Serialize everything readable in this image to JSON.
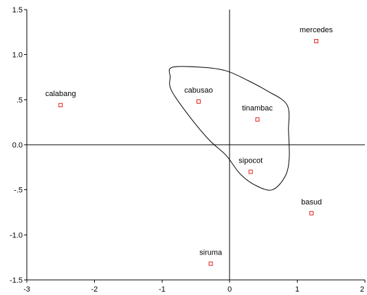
{
  "chart_data": {
    "type": "scatter",
    "title": "",
    "xlabel": "",
    "ylabel": "",
    "xlim": [
      -3,
      2
    ],
    "ylim": [
      -1.5,
      1.5
    ],
    "x_ticks": [
      {
        "value": -3,
        "label": "-3"
      },
      {
        "value": -2,
        "label": "-2"
      },
      {
        "value": -1,
        "label": "-1"
      },
      {
        "value": 0,
        "label": "0"
      },
      {
        "value": 1,
        "label": "1"
      },
      {
        "value": 2,
        "label": "2"
      }
    ],
    "y_ticks": [
      {
        "value": 1.5,
        "label": "1.5"
      },
      {
        "value": 1.0,
        "label": "1.0"
      },
      {
        "value": 0.5,
        "label": ".5"
      },
      {
        "value": 0.0,
        "label": "0.0"
      },
      {
        "value": -0.5,
        "label": "-.5"
      },
      {
        "value": -1.0,
        "label": "-1.0"
      },
      {
        "value": -1.5,
        "label": "-1.5"
      }
    ],
    "reference_lines": {
      "x": 0,
      "y": 0
    },
    "marker_color": "#e0201b",
    "points": [
      {
        "label": "mercedes",
        "x": 1.28,
        "y": 1.15
      },
      {
        "label": "calabang",
        "x": -2.5,
        "y": 0.44
      },
      {
        "label": "cabusao",
        "x": -0.46,
        "y": 0.48
      },
      {
        "label": "tinambac",
        "x": 0.41,
        "y": 0.28
      },
      {
        "label": "sipocot",
        "x": 0.31,
        "y": -0.3
      },
      {
        "label": "basud",
        "x": 1.21,
        "y": -0.76
      },
      {
        "label": "siruma",
        "x": -0.28,
        "y": -1.32
      }
    ],
    "cluster_outline": [
      [
        -0.85,
        0.86
      ],
      [
        -0.4,
        0.86
      ],
      [
        -0.05,
        0.82
      ],
      [
        0.25,
        0.72
      ],
      [
        0.55,
        0.6
      ],
      [
        0.85,
        0.44
      ],
      [
        0.87,
        0.15
      ],
      [
        0.88,
        -0.15
      ],
      [
        0.82,
        -0.35
      ],
      [
        0.63,
        -0.5
      ],
      [
        0.38,
        -0.45
      ],
      [
        0.15,
        -0.32
      ],
      [
        -0.05,
        -0.12
      ],
      [
        -0.3,
        0.05
      ],
      [
        -0.58,
        0.3
      ],
      [
        -0.86,
        0.6
      ],
      [
        -0.88,
        0.75
      ]
    ]
  }
}
